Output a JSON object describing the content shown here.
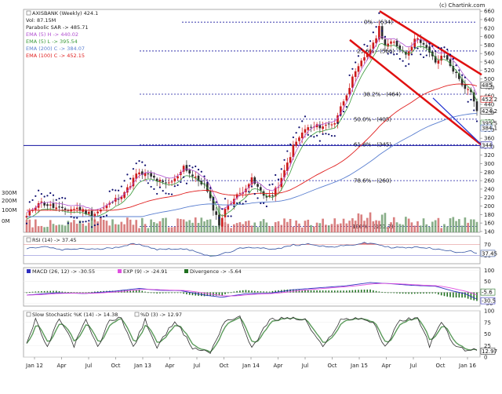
{
  "header": {
    "ticker_label": "AXISBANK (Weekly) 424.1",
    "copyright": "(c) Chartink.com"
  },
  "colors": {
    "up": "#cc1a1a",
    "down": "#2a2a2a",
    "sar": "#101070",
    "ema_h": "#b04fd0",
    "ema_l": "#3a9a3a",
    "ema200": "#5a7fd0",
    "ema100": "#e02020",
    "fib": "#1a1aa0",
    "channel": "#e01010",
    "hline": "#1010a0",
    "rsi": "#3050a0",
    "rsi_fill": "#e06060",
    "rsi_fill_low": "#40a040",
    "macd": "#3030c0",
    "exp": "#e050e0",
    "div": "#207020",
    "stoch_k": "#303030",
    "stoch_d": "#5a9a5a"
  },
  "chart_data": [
    {
      "type": "candlestick",
      "panel": "price",
      "legend": [
        {
          "label": "AXISBANK (Weekly) 424.1",
          "color": "#222222"
        },
        {
          "label": "Vol: 87.15M",
          "color": "#222222"
        },
        {
          "label": "Parabolic SAR -> 485.71",
          "color": "#222222"
        },
        {
          "label": "EMA (5) H -> 440.02",
          "color": "#b04fd0"
        },
        {
          "label": "EMA (5) L -> 395.54",
          "color": "#3a9a3a"
        },
        {
          "label": "EMA (200) C -> 384.07",
          "color": "#5a7fd0"
        },
        {
          "label": "EMA (100) C -> 452.15",
          "color": "#e02020"
        }
      ],
      "x_tick_labels": [
        "Jan 12",
        "Apr",
        "Jul",
        "Oct",
        "Jan 13",
        "Apr",
        "Jul",
        "Oct",
        "Jan 14",
        "Apr",
        "Jul",
        "Oct",
        "Jan 15",
        "Apr",
        "Jul",
        "Oct",
        "Jan 16"
      ],
      "y_ticks": [
        140,
        160,
        180,
        200,
        220,
        240,
        260,
        280,
        300,
        320,
        340,
        360,
        380,
        400,
        420,
        440,
        460,
        480,
        500,
        520,
        540,
        560,
        580,
        600,
        620,
        640,
        660
      ],
      "ylim": [
        138,
        664
      ],
      "fib_levels": [
        {
          "label": "0% - (634)",
          "value": 634
        },
        {
          "label": "23.6% - (566)",
          "value": 566
        },
        {
          "label": "38.2% - (464)",
          "value": 464
        },
        {
          "label": "50.0% - (405)",
          "value": 405
        },
        {
          "label": "61.8% - (345)",
          "value": 345
        },
        {
          "label": "78.6% - (260)",
          "value": 260
        },
        {
          "label": "100% - (151.7)",
          "value": 151.7
        }
      ],
      "horizontal_line": 343,
      "price_tags": [
        "485",
        "452.2",
        "424.2",
        "395.5",
        "384.1",
        "344"
      ],
      "volume_tick_labels": [
        "300M",
        "200M",
        "100M",
        "0M"
      ],
      "volume_ylim": [
        0,
        340
      ],
      "close_anchors": [
        [
          0,
          175
        ],
        [
          4,
          210
        ],
        [
          8,
          200
        ],
        [
          12,
          190
        ],
        [
          17,
          195
        ],
        [
          22,
          180
        ],
        [
          26,
          195
        ],
        [
          30,
          215
        ],
        [
          34,
          240
        ],
        [
          37,
          275
        ],
        [
          40,
          275
        ],
        [
          43,
          265
        ],
        [
          47,
          250
        ],
        [
          50,
          262
        ],
        [
          53,
          295
        ],
        [
          56,
          270
        ],
        [
          60,
          250
        ],
        [
          63,
          195
        ],
        [
          65,
          158
        ],
        [
          68,
          205
        ],
        [
          72,
          230
        ],
        [
          76,
          262
        ],
        [
          80,
          225
        ],
        [
          83,
          225
        ],
        [
          86,
          262
        ],
        [
          90,
          340
        ],
        [
          94,
          382
        ],
        [
          98,
          388
        ],
        [
          101,
          390
        ],
        [
          104,
          398
        ],
        [
          107,
          450
        ],
        [
          110,
          500
        ],
        [
          114,
          552
        ],
        [
          117,
          580
        ],
        [
          119,
          622
        ],
        [
          121,
          580
        ],
        [
          124,
          585
        ],
        [
          128,
          560
        ],
        [
          132,
          600
        ],
        [
          135,
          570
        ],
        [
          138,
          540
        ],
        [
          141,
          555
        ],
        [
          145,
          510
        ],
        [
          148,
          478
        ],
        [
          150,
          465
        ],
        [
          152,
          424
        ]
      ]
    },
    {
      "type": "line",
      "panel": "rsi",
      "legend": [
        {
          "label": "RSI (14) -> 37.45",
          "color": "#3050a0"
        }
      ],
      "y_ticks": [
        70,
        30
      ],
      "ylim": [
        0,
        100
      ],
      "last_value_tag": "37.45",
      "anchors": [
        [
          0,
          55
        ],
        [
          6,
          62
        ],
        [
          12,
          50
        ],
        [
          18,
          55
        ],
        [
          24,
          52
        ],
        [
          30,
          60
        ],
        [
          36,
          72
        ],
        [
          40,
          66
        ],
        [
          44,
          52
        ],
        [
          50,
          55
        ],
        [
          56,
          50
        ],
        [
          62,
          25
        ],
        [
          66,
          35
        ],
        [
          72,
          55
        ],
        [
          78,
          60
        ],
        [
          84,
          52
        ],
        [
          90,
          68
        ],
        [
          96,
          72
        ],
        [
          102,
          60
        ],
        [
          108,
          66
        ],
        [
          114,
          75
        ],
        [
          118,
          72
        ],
        [
          122,
          60
        ],
        [
          128,
          58
        ],
        [
          134,
          60
        ],
        [
          140,
          50
        ],
        [
          146,
          42
        ],
        [
          150,
          48
        ],
        [
          152,
          37.45
        ]
      ]
    },
    {
      "type": "line",
      "panel": "macd",
      "legend": [
        {
          "label": "MACD (26, 12) -> -30.55",
          "color": "#3030c0"
        },
        {
          "label": "EXP (9) -> -24.91",
          "color": "#e050e0"
        },
        {
          "label": "Divergence -> -5.64",
          "color": "#207020"
        }
      ],
      "y_ticks": [
        100,
        50,
        0,
        -50
      ],
      "ylim": [
        -62,
        112
      ],
      "last_value_tags": [
        "-5.6",
        "-30.5"
      ],
      "anchors": [
        [
          0,
          -12
        ],
        [
          10,
          -2
        ],
        [
          20,
          -5
        ],
        [
          30,
          6
        ],
        [
          38,
          18
        ],
        [
          44,
          10
        ],
        [
          52,
          8
        ],
        [
          60,
          -12
        ],
        [
          66,
          -22
        ],
        [
          74,
          -6
        ],
        [
          82,
          -4
        ],
        [
          90,
          12
        ],
        [
          98,
          20
        ],
        [
          108,
          30
        ],
        [
          116,
          44
        ],
        [
          122,
          40
        ],
        [
          130,
          32
        ],
        [
          138,
          28
        ],
        [
          144,
          6
        ],
        [
          148,
          -6
        ],
        [
          152,
          -30.55
        ]
      ]
    },
    {
      "type": "line",
      "panel": "stochastic",
      "legend": [
        {
          "label": "Slow Stochastic %K (14) -> 14.38",
          "color": "#303030"
        },
        {
          "label": "%D (3) -> 12.97",
          "color": "#5a9a5a"
        }
      ],
      "y_ticks": [
        100,
        75,
        50,
        25,
        0
      ],
      "ylim": [
        0,
        100
      ],
      "last_value_tag": "12.97",
      "anchors": [
        [
          0,
          30
        ],
        [
          3,
          80
        ],
        [
          7,
          20
        ],
        [
          11,
          85
        ],
        [
          16,
          25
        ],
        [
          20,
          80
        ],
        [
          24,
          20
        ],
        [
          28,
          80
        ],
        [
          32,
          85
        ],
        [
          36,
          20
        ],
        [
          40,
          80
        ],
        [
          44,
          20
        ],
        [
          50,
          80
        ],
        [
          56,
          20
        ],
        [
          62,
          10
        ],
        [
          67,
          80
        ],
        [
          72,
          85
        ],
        [
          76,
          20
        ],
        [
          82,
          80
        ],
        [
          88,
          85
        ],
        [
          94,
          80
        ],
        [
          100,
          20
        ],
        [
          106,
          80
        ],
        [
          112,
          85
        ],
        [
          117,
          75
        ],
        [
          121,
          20
        ],
        [
          126,
          80
        ],
        [
          132,
          85
        ],
        [
          136,
          25
        ],
        [
          140,
          75
        ],
        [
          145,
          20
        ],
        [
          149,
          15
        ],
        [
          152,
          14.38
        ]
      ]
    }
  ]
}
